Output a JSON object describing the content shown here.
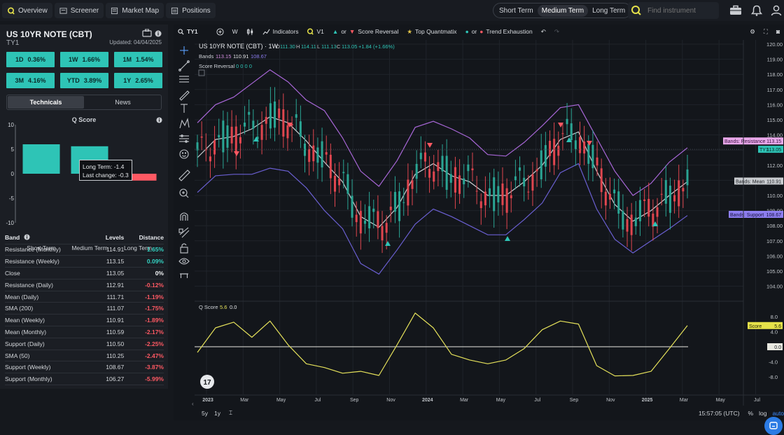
{
  "nav": {
    "overview": "Overview",
    "screener": "Screener",
    "market_map": "Market Map",
    "positions": "Positions"
  },
  "terms": {
    "short": "Short Term",
    "medium": "Medium Term",
    "long": "Long Term",
    "active": "Medium Term"
  },
  "search": {
    "placeholder": "Find instrument"
  },
  "instrument": {
    "title": "US 10YR NOTE (CBT)",
    "code": "TY1",
    "updated": "Updated: 04/04/2025"
  },
  "performance": [
    {
      "period": "1D",
      "value": "0.36%"
    },
    {
      "period": "1W",
      "value": "1.66%"
    },
    {
      "period": "1M",
      "value": "1.54%"
    },
    {
      "period": "3M",
      "value": "4.16%"
    },
    {
      "period": "YTD",
      "value": "3.89%"
    },
    {
      "period": "1Y",
      "value": "2.65%"
    }
  ],
  "tabs": {
    "technicals": "Technicals",
    "news": "News",
    "active": "Technicals"
  },
  "qscore_panel": {
    "title": "Q Score",
    "yticks": [
      "10",
      "5",
      "0",
      "-5",
      "-10"
    ],
    "categories": [
      "Short Term",
      "Medium Term",
      "Long Term"
    ],
    "tooltip_line1": "Long Term: -1.4",
    "tooltip_line2": "Last change: -0.3"
  },
  "bands_table": {
    "headers": {
      "band": "Band",
      "levels": "Levels",
      "distance": "Distance"
    },
    "rows": [
      {
        "band": "Resistance (Monthly)",
        "level": "114.91",
        "distance": "1.65%"
      },
      {
        "band": "Resistance (Weekly)",
        "level": "113.15",
        "distance": "0.09%"
      },
      {
        "band": "Close",
        "level": "113.05",
        "distance": "0%"
      },
      {
        "band": "Resistance (Daily)",
        "level": "112.91",
        "distance": "-0.12%"
      },
      {
        "band": "Mean (Daily)",
        "level": "111.71",
        "distance": "-1.19%"
      },
      {
        "band": "SMA (200)",
        "level": "111.07",
        "distance": "-1.75%"
      },
      {
        "band": "Mean (Weekly)",
        "level": "110.91",
        "distance": "-1.89%"
      },
      {
        "band": "Mean (Monthly)",
        "level": "110.59",
        "distance": "-2.17%"
      },
      {
        "band": "Support (Daily)",
        "level": "110.50",
        "distance": "-2.25%"
      },
      {
        "band": "SMA (50)",
        "level": "110.25",
        "distance": "-2.47%"
      },
      {
        "band": "Support (Weekly)",
        "level": "108.67",
        "distance": "-3.87%"
      },
      {
        "band": "Support (Monthly)",
        "level": "106.27",
        "distance": "-5.99%"
      }
    ]
  },
  "toolbar": {
    "symbol": "TY1",
    "interval": "W",
    "indicators": "Indicators",
    "v1": "V1",
    "or": "or",
    "score_reversal": "Score Reversal",
    "top_quantmatix": "Top Quantmatix",
    "trend_exhaustion": "Trend Exhaustion"
  },
  "legend": {
    "title": "US 10YR NOTE (CBT) · 1W",
    "o_label": "O",
    "o": "111.30",
    "h_label": "H",
    "h": "114.11",
    "l_label": "L",
    "l": "111.13",
    "c_label": "C",
    "c": "113.05",
    "change": "+1.84 (+1.66%)",
    "bands_label": "Bands",
    "bands_res": "113.15",
    "bands_mean": "110.91",
    "bands_sup": "108.67",
    "score_reversal_label": "Score Reversal",
    "score_reversal_values": "0  0  0  0",
    "qscore_label": "Q Score",
    "qscore_v1": "5.6",
    "qscore_v2": "0.0"
  },
  "axis_labels": {
    "price_ticks": [
      "120.00",
      "119.00",
      "118.00",
      "117.00",
      "116.00",
      "115.00",
      "114.00",
      "113.00",
      "112.00",
      "111.00",
      "110.00",
      "109.00",
      "108.00",
      "107.00",
      "106.00",
      "105.00",
      "104.00"
    ],
    "score_ticks": [
      "8.0",
      "4.0",
      "0.0",
      "-4.0",
      "-8.0"
    ],
    "x_ticks": [
      "2023",
      "Mar",
      "May",
      "Jul",
      "Sep",
      "Nov",
      "2024",
      "Mar",
      "May",
      "Jul",
      "Sep",
      "Nov",
      "2025",
      "Mar",
      "May",
      "Jul"
    ],
    "tag_resistance": "Bands: Resistance",
    "tag_resistance_val": "113.15",
    "tag_ty1": "TY1",
    "tag_ty1_val": "113.05",
    "tag_mean": "Bands: Mean",
    "tag_mean_val": "110.91",
    "tag_support": "Bands: Support",
    "tag_support_val": "108.67",
    "tag_score": "Score",
    "tag_score_val": "5.6",
    "tag_zero": "0.0"
  },
  "bottom": {
    "range_5y": "5y",
    "range_1y": "1y",
    "time": "15:57:05 (UTC)",
    "pct": "%",
    "log": "log",
    "auto": "auto"
  },
  "colors": {
    "teal": "#2ec4b6",
    "red": "#ff5963",
    "purple": "#9a63c9",
    "mean": "#c9ccd0",
    "qscore": "#e4e05a",
    "accent": "#e6e24a"
  },
  "chart_data": [
    {
      "type": "bar",
      "title": "Q Score",
      "categories": [
        "Short Term",
        "Medium Term",
        "Long Term"
      ],
      "values": [
        6.0,
        5.6,
        -1.4
      ],
      "ylim": [
        -10,
        10
      ]
    },
    {
      "type": "line",
      "title": "US 10YR NOTE (CBT) · 1W",
      "x": [
        "2023-01",
        "2023-02",
        "2023-03",
        "2023-04",
        "2023-05",
        "2023-06",
        "2023-07",
        "2023-08",
        "2023-09",
        "2023-10",
        "2023-11",
        "2023-12",
        "2024-01",
        "2024-02",
        "2024-03",
        "2024-04",
        "2024-05",
        "2024-06",
        "2024-07",
        "2024-08",
        "2024-09",
        "2024-10",
        "2024-11",
        "2024-12",
        "2025-01",
        "2025-02",
        "2025-03",
        "2025-04"
      ],
      "ylim": [
        104,
        120
      ],
      "series": [
        {
          "name": "Bands: Resistance",
          "values": [
            114.8,
            116.0,
            116.5,
            117.4,
            118.3,
            117.5,
            116.3,
            115.6,
            113.8,
            111.6,
            110.6,
            112.3,
            114.5,
            114.9,
            114.4,
            113.8,
            112.7,
            112.6,
            113.5,
            114.6,
            115.8,
            116.0,
            113.8,
            111.6,
            110.0,
            110.8,
            112.2,
            113.15
          ]
        },
        {
          "name": "Bands: Mean",
          "values": [
            112.5,
            113.7,
            113.9,
            114.4,
            115.2,
            114.8,
            113.6,
            112.2,
            110.9,
            108.6,
            107.9,
            109.2,
            111.4,
            112.1,
            111.3,
            110.9,
            110.0,
            110.0,
            110.9,
            112.0,
            113.7,
            114.2,
            111.6,
            109.4,
            108.3,
            109.0,
            110.0,
            110.91
          ]
        },
        {
          "name": "Bands: Support",
          "values": [
            110.2,
            111.3,
            111.4,
            111.4,
            111.8,
            111.6,
            110.5,
            109.0,
            107.8,
            105.5,
            104.8,
            106.4,
            108.1,
            109.1,
            108.6,
            108.0,
            107.4,
            107.4,
            108.4,
            109.5,
            111.5,
            112.1,
            109.1,
            107.1,
            106.2,
            107.0,
            107.8,
            108.67
          ]
        },
        {
          "name": "Q Score",
          "values": [
            -1.5,
            5.0,
            6.5,
            2.5,
            6.8,
            0.5,
            -4.5,
            -5.5,
            -7.0,
            -6.5,
            -7.6,
            0.5,
            8.9,
            5.0,
            -2.0,
            -3.5,
            -4.5,
            -3.5,
            -0.5,
            4.5,
            6.8,
            6.0,
            -5.0,
            -7.7,
            -7.6,
            -6.5,
            -0.5,
            5.6
          ]
        }
      ],
      "xlabel": "",
      "ylabel": ""
    }
  ]
}
